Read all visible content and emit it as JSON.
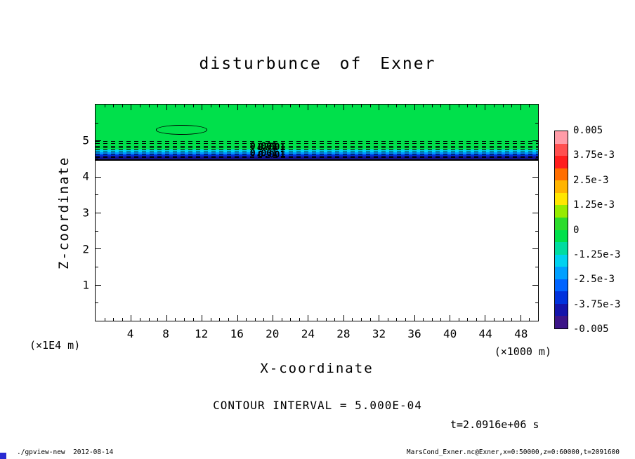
{
  "title": "disturbunce of Exner",
  "axes": {
    "x_label": "X-coordinate",
    "x_unit": "(×1000 m)",
    "y_label": "Z-coordinate",
    "y_unit": "(×1E4 m)"
  },
  "annotations": {
    "contour_interval": "CONTOUR INTERVAL = 5.000E-04",
    "time": "t=2.0916e+06 s"
  },
  "footer": {
    "left": "./gpview-new  2012-08-14",
    "right": "MarsCond_Exner.nc@Exner,x=0:50000,z=0:60000,t=2091600"
  },
  "chart_data": {
    "type": "heatmap",
    "title": "disturbunce of Exner",
    "field": "disturbance of Exner function (filled contour section)",
    "xlabel": "X-coordinate (×1000 m)",
    "ylabel": "Z-coordinate (×1E4 m)",
    "x_range": [
      0,
      50
    ],
    "z_range": [
      0,
      6
    ],
    "x_tick_values": [
      4,
      8,
      12,
      16,
      20,
      24,
      28,
      32,
      36,
      40,
      44,
      48
    ],
    "x_minor_step": 1,
    "y_tick_values": [
      1,
      2,
      3,
      4,
      5
    ],
    "y_minor_step": 0.5,
    "contour_interval": 0.0005,
    "time": "2.0916e+06 s",
    "field_description": "Near-zero (green) field above z≈4.5; thin stratified negative layer (cyan→blue→navy, ≈ -0.001 to -0.005) between z≈4.48 and z≈4.98 marked by dashed negative contours; blank (white) below z≈4.48; small closed +0.001 contour near x≈10, z≈5.3",
    "fill_bands": [
      {
        "z_from": 4.76,
        "z_to": 6.0,
        "value": "≈0",
        "color": "#00e04b"
      },
      {
        "z_from": 4.68,
        "z_to": 4.76,
        "value": "≈-1.5e-3",
        "color": "#00d2f0"
      },
      {
        "z_from": 4.61,
        "z_to": 4.68,
        "value": "≈-2.5e-3",
        "color": "#0096ff"
      },
      {
        "z_from": 4.55,
        "z_to": 4.61,
        "value": "≈-3.5e-3",
        "color": "#0032dc"
      },
      {
        "z_from": 4.48,
        "z_to": 4.55,
        "value": "≈-4.5e-3",
        "color": "#14148c"
      }
    ],
    "dashed_contour_z": [
      4.98,
      4.92,
      4.86,
      4.81,
      4.75,
      4.7,
      4.64,
      4.58,
      4.53
    ],
    "solid_contour_z": 4.48,
    "positive_contour_ellipse": {
      "x_center": 9.7,
      "z_center": 5.3,
      "x_radius": 2.9,
      "z_radius": 0.13,
      "value": 0.001
    },
    "contour_labels": [
      {
        "text": "0.001",
        "x": 19.0,
        "z": 4.84
      },
      {
        "text": "0.001",
        "x": 19.9,
        "z": 4.81
      },
      {
        "text": "0.001",
        "x": 19.0,
        "z": 4.63
      },
      {
        "text": "0.001",
        "x": 19.9,
        "z": 4.6
      }
    ],
    "colorbar": {
      "min": -0.005,
      "max": 0.005,
      "labels": [
        "0.005",
        "3.75e-3",
        "2.5e-3",
        "1.25e-3",
        "0",
        "-1.25e-3",
        "-2.5e-3",
        "-3.75e-3",
        "-0.005"
      ],
      "segment_colors_top_to_bottom": [
        "#ff9ca8",
        "#ff5050",
        "#ff1e1e",
        "#ff6e00",
        "#ffb400",
        "#ffe600",
        "#96eb00",
        "#2cdc2c",
        "#00e04b",
        "#00dca0",
        "#00d2f0",
        "#00a0ff",
        "#0064ff",
        "#0032dc",
        "#1414aa",
        "#3c1488"
      ]
    }
  }
}
